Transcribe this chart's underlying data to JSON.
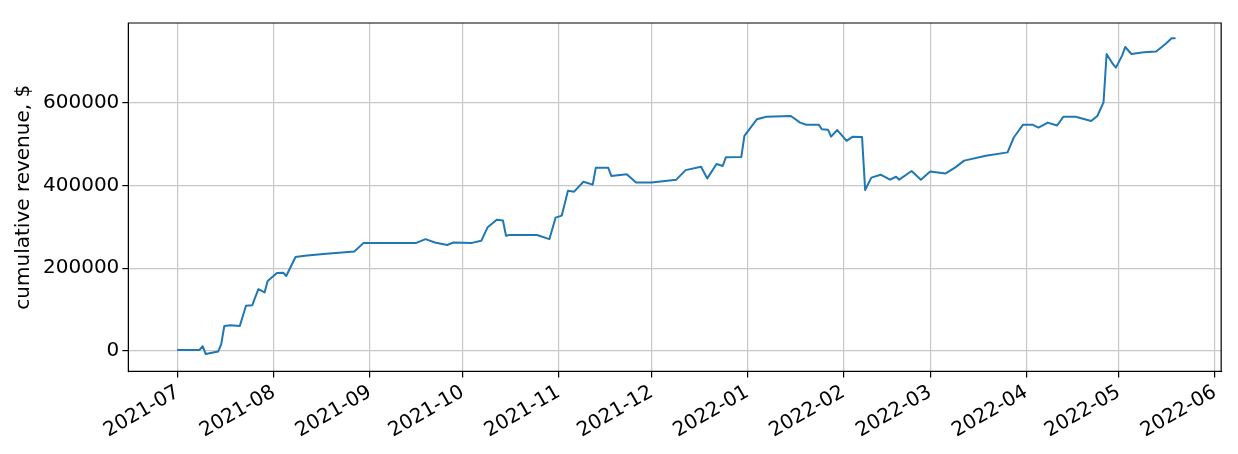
{
  "chart_data": {
    "type": "line",
    "ylabel": "cumulative revenue, $",
    "x": [
      "2021-07-01",
      "2021-07-08",
      "2021-07-09",
      "2021-07-10",
      "2021-07-14",
      "2021-07-15",
      "2021-07-16",
      "2021-07-18",
      "2021-07-21",
      "2021-07-23",
      "2021-07-25",
      "2021-07-27",
      "2021-07-29",
      "2021-07-30",
      "2021-08-02",
      "2021-08-04",
      "2021-08-05",
      "2021-08-08",
      "2021-08-11",
      "2021-08-17",
      "2021-08-23",
      "2021-08-27",
      "2021-08-30",
      "2021-09-16",
      "2021-09-19",
      "2021-09-22",
      "2021-09-26",
      "2021-09-28",
      "2021-10-04",
      "2021-10-07",
      "2021-10-09",
      "2021-10-12",
      "2021-10-14",
      "2021-10-15",
      "2021-10-16",
      "2021-10-25",
      "2021-10-29",
      "2021-10-31",
      "2021-11-02",
      "2021-11-04",
      "2021-11-06",
      "2021-11-09",
      "2021-11-12",
      "2021-11-13",
      "2021-11-17",
      "2021-11-18",
      "2021-11-23",
      "2021-11-26",
      "2021-12-01",
      "2021-12-09",
      "2021-12-12",
      "2021-12-17",
      "2021-12-19",
      "2021-12-22",
      "2021-12-24",
      "2021-12-25",
      "2021-12-30",
      "2021-12-31",
      "2022-01-04",
      "2022-01-07",
      "2022-01-15",
      "2022-01-18",
      "2022-01-20",
      "2022-01-24",
      "2022-01-25",
      "2022-01-27",
      "2022-01-28",
      "2022-01-30",
      "2022-02-02",
      "2022-02-04",
      "2022-02-07",
      "2022-02-08",
      "2022-02-10",
      "2022-02-13",
      "2022-02-16",
      "2022-02-18",
      "2022-02-19",
      "2022-02-23",
      "2022-02-26",
      "2022-03-01",
      "2022-03-06",
      "2022-03-09",
      "2022-03-12",
      "2022-03-19",
      "2022-03-26",
      "2022-03-28",
      "2022-03-31",
      "2022-04-03",
      "2022-04-05",
      "2022-04-08",
      "2022-04-11",
      "2022-04-13",
      "2022-04-17",
      "2022-04-22",
      "2022-04-24",
      "2022-04-26",
      "2022-04-27",
      "2022-04-29",
      "2022-04-30",
      "2022-05-02",
      "2022-05-03",
      "2022-05-05",
      "2022-05-09",
      "2022-05-13",
      "2022-05-16",
      "2022-05-18",
      "2022-05-19"
    ],
    "series": [
      {
        "color": "#1f77b4",
        "values": [
          2000,
          2000,
          11000,
          -8000,
          -2000,
          16000,
          60000,
          62000,
          60000,
          109000,
          110000,
          149000,
          141000,
          169000,
          188000,
          189000,
          181000,
          227000,
          230000,
          234000,
          238000,
          240000,
          261000,
          261000,
          270000,
          262000,
          256000,
          262000,
          261000,
          266000,
          298000,
          317000,
          315000,
          278000,
          280000,
          280000,
          270000,
          322000,
          327000,
          387000,
          385000,
          409000,
          402000,
          443000,
          443000,
          423000,
          427000,
          407000,
          407000,
          414000,
          437000,
          445000,
          417000,
          452000,
          447000,
          468000,
          469000,
          520000,
          560000,
          566000,
          568000,
          552000,
          547000,
          547000,
          536000,
          535000,
          518000,
          534000,
          508000,
          518000,
          517000,
          389000,
          419000,
          426000,
          414000,
          421000,
          414000,
          435000,
          414000,
          434000,
          429000,
          443000,
          460000,
          472000,
          480000,
          516000,
          547000,
          547000,
          540000,
          552000,
          545000,
          566000,
          566000,
          556000,
          568000,
          601000,
          718000,
          694000,
          685000,
          714000,
          735000,
          718000,
          722000,
          724000,
          742000,
          756000,
          756000
        ]
      }
    ],
    "xlim": [
      "2021-06-15",
      "2022-06-03"
    ],
    "xticks": [
      "2021-07",
      "2021-08",
      "2021-09",
      "2021-10",
      "2021-11",
      "2021-12",
      "2022-01",
      "2022-02",
      "2022-03",
      "2022-04",
      "2022-05",
      "2022-06"
    ],
    "ylim": [
      -50000,
      793000
    ],
    "yticks": [
      0,
      200000,
      400000,
      600000
    ],
    "grid": true,
    "legend": false,
    "marker": "none",
    "line_style": "solid"
  }
}
